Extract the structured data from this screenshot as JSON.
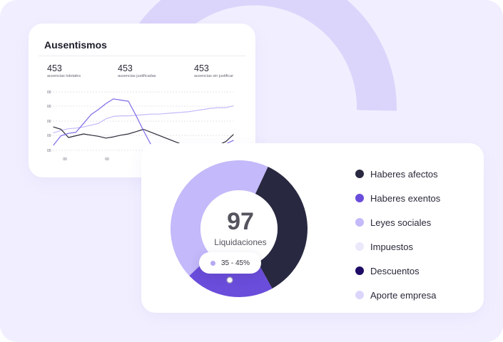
{
  "colors": {
    "background": "#f1efff",
    "decor": "#dcd5fb",
    "line_dark": "#2a2a38",
    "line_violet": "#7c6ce8",
    "line_light": "#c4b9fa"
  },
  "absences": {
    "title": "Ausentismos",
    "stats": [
      {
        "value": "453",
        "label": "ausencias tototales"
      },
      {
        "value": "453",
        "label": "ausencias justificadas"
      },
      {
        "value": "453",
        "label": "ausencias sin justificar"
      }
    ]
  },
  "chart_data": {
    "type": "line",
    "y_tick_labels": [
      "00",
      "00",
      "00",
      "00",
      "00"
    ],
    "x_tick_labels": [
      "00",
      "00",
      "00",
      "00",
      "00"
    ],
    "x": [
      0,
      1,
      2,
      3,
      4,
      5,
      6,
      7,
      8,
      9,
      10,
      11,
      12,
      13,
      14,
      15,
      16,
      17,
      18,
      19,
      20,
      21,
      22,
      23,
      24
    ],
    "ylim": [
      0,
      100
    ],
    "grid": true,
    "series": [
      {
        "values": [
          40,
          36,
          22,
          25,
          28,
          26,
          24,
          21,
          23,
          26,
          28,
          32,
          36,
          31,
          26,
          21,
          16,
          11,
          6,
          3,
          6,
          8,
          9,
          15,
          27
        ]
      },
      {
        "values": [
          9,
          25,
          29,
          31,
          46,
          61,
          70,
          80,
          88,
          86,
          84,
          60,
          34,
          10,
          1,
          3,
          7,
          10,
          6,
          4,
          7,
          9,
          10,
          11,
          17
        ]
      },
      {
        "values": [
          30,
          34,
          37,
          38,
          40,
          43,
          46,
          54,
          58,
          59,
          59,
          60,
          61,
          62,
          62,
          63,
          64,
          65,
          66,
          68,
          70,
          72,
          73,
          73,
          76
        ]
      }
    ]
  },
  "payroll": {
    "center_value": "97",
    "center_label": "Liquidaciones",
    "tooltip_range": "35 - 45%",
    "slices": [
      {
        "label": "Haberes afectos",
        "color": "#282841",
        "percent": 35
      },
      {
        "label": "Haberes exentos",
        "color": "#6a4ddb",
        "percent": 21
      },
      {
        "label": "Leyes sociales",
        "color": "#c4b9fa",
        "percent": 44
      }
    ],
    "legend": [
      {
        "label": "Haberes afectos",
        "color": "#282841"
      },
      {
        "label": "Haberes exentos",
        "color": "#6a4ddb"
      },
      {
        "label": "Leyes sociales",
        "color": "#c4b9fa"
      },
      {
        "label": "Impuestos",
        "color": "#ebe8fb"
      },
      {
        "label": "Descuentos",
        "color": "#1d0b66"
      },
      {
        "label": "Aporte empresa",
        "color": "#dcd5fb"
      }
    ]
  }
}
